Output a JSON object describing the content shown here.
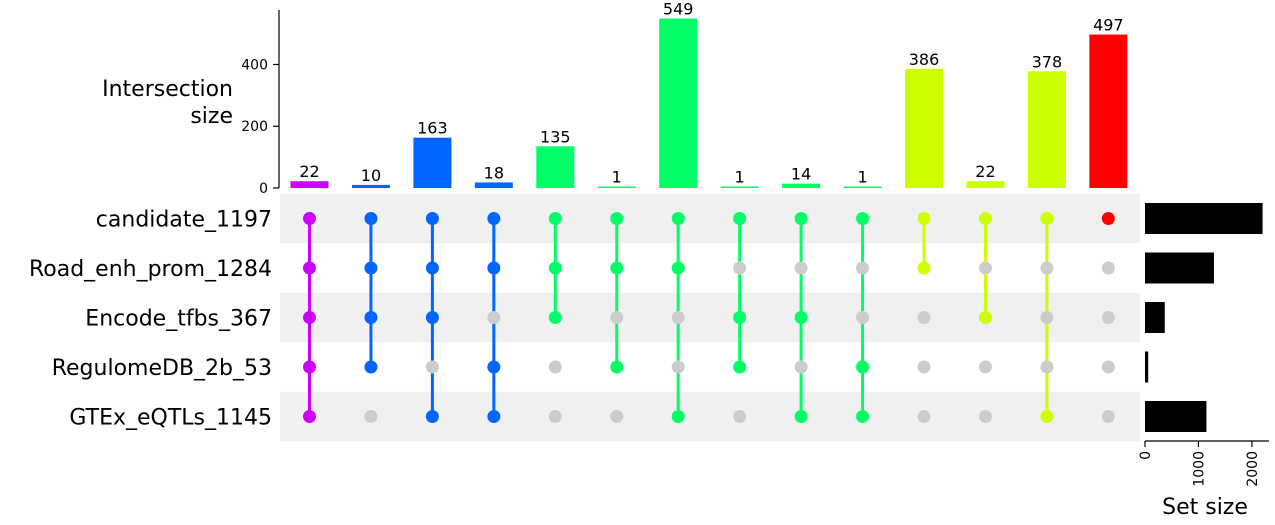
{
  "chart_data": {
    "type": "bar",
    "subtype": "upset",
    "ylabel": [
      "Intersection",
      "size"
    ],
    "xlabel_sets": "Set size",
    "ylim": [
      0,
      570
    ],
    "yticks": [
      0,
      200,
      400
    ],
    "sets": [
      {
        "name": "candidate_1197",
        "size": 2200
      },
      {
        "name": "Road_enh_prom_1284",
        "size": 1290
      },
      {
        "name": "Encode_tfbs_367",
        "size": 370
      },
      {
        "name": "RegulomeDB_2b_53",
        "size": 60
      },
      {
        "name": "GTEx_eQTLs_1145",
        "size": 1150
      }
    ],
    "set_size_ticks": [
      0,
      1000,
      2000
    ],
    "set_size_max": 2320,
    "intersections": [
      {
        "value": 22,
        "color": "#cc00ff",
        "members": [
          0,
          1,
          2,
          3,
          4
        ]
      },
      {
        "value": 10,
        "color": "#0066ff",
        "members": [
          0,
          1,
          2,
          3
        ]
      },
      {
        "value": 163,
        "color": "#0066ff",
        "members": [
          0,
          1,
          2,
          4
        ]
      },
      {
        "value": 18,
        "color": "#0066ff",
        "members": [
          0,
          1,
          3,
          4
        ]
      },
      {
        "value": 135,
        "color": "#00ff66",
        "members": [
          0,
          1,
          2
        ]
      },
      {
        "value": 1,
        "color": "#00ff66",
        "members": [
          0,
          1,
          3
        ]
      },
      {
        "value": 549,
        "color": "#00ff66",
        "members": [
          0,
          1,
          4
        ]
      },
      {
        "value": 1,
        "color": "#00ff66",
        "members": [
          0,
          2,
          3
        ]
      },
      {
        "value": 14,
        "color": "#00ff66",
        "members": [
          0,
          2,
          4
        ]
      },
      {
        "value": 1,
        "color": "#00ff66",
        "members": [
          0,
          3,
          4
        ]
      },
      {
        "value": 386,
        "color": "#ccff00",
        "members": [
          0,
          1
        ]
      },
      {
        "value": 22,
        "color": "#ccff00",
        "members": [
          0,
          2
        ]
      },
      {
        "value": 378,
        "color": "#ccff00",
        "members": [
          0,
          4
        ]
      },
      {
        "value": 497,
        "color": "#ff0000",
        "members": [
          0
        ]
      }
    ],
    "colors": {
      "inactive_dot": "#cccccc",
      "stripe": "#f0f0f0",
      "set_bar": "#000000"
    }
  }
}
